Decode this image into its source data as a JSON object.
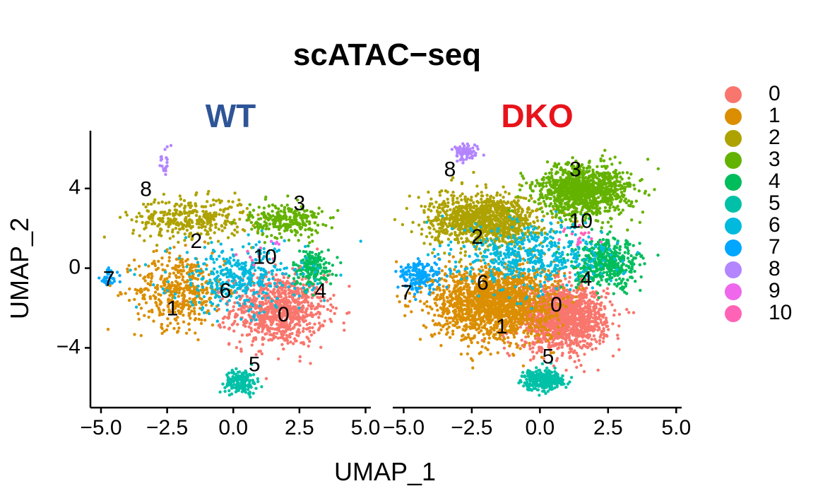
{
  "chart_data": {
    "type": "scatter",
    "title": "scATAC−seq",
    "xlabel": "UMAP_1",
    "ylabel": "UMAP_2",
    "xlim": [
      -5.4,
      5.2
    ],
    "ylim": [
      -7.0,
      6.9
    ],
    "xticks": [
      -5.0,
      -2.5,
      0.0,
      2.5,
      5.0
    ],
    "xtick_labels": [
      "−5.0",
      "−2.5",
      "0.0",
      "2.5",
      "5.0"
    ],
    "yticks": [
      -4,
      0,
      4
    ],
    "ytick_labels": [
      "−4",
      "0",
      "4"
    ],
    "legend_position": "right",
    "legend": [
      {
        "label": "0",
        "color": "#F8766D"
      },
      {
        "label": "1",
        "color": "#DB8E00"
      },
      {
        "label": "2",
        "color": "#AEA200"
      },
      {
        "label": "3",
        "color": "#64B200"
      },
      {
        "label": "4",
        "color": "#00BD5C"
      },
      {
        "label": "5",
        "color": "#00C1A7"
      },
      {
        "label": "6",
        "color": "#00BADE"
      },
      {
        "label": "7",
        "color": "#00A6FF"
      },
      {
        "label": "8",
        "color": "#B385FF"
      },
      {
        "label": "9",
        "color": "#EF67EB"
      },
      {
        "label": "10",
        "color": "#FF63B6"
      }
    ],
    "panels": [
      {
        "title": "WT",
        "title_color": "#2E5597",
        "cluster_labels": [
          {
            "label": "0",
            "x": 1.9,
            "y": -2.4
          },
          {
            "label": "1",
            "x": -2.3,
            "y": -2.1
          },
          {
            "label": "2",
            "x": -1.4,
            "y": 1.3
          },
          {
            "label": "3",
            "x": 2.5,
            "y": 3.2
          },
          {
            "label": "4",
            "x": 3.3,
            "y": -1.2
          },
          {
            "label": "5",
            "x": 0.8,
            "y": -4.9
          },
          {
            "label": "6",
            "x": -0.3,
            "y": -1.2
          },
          {
            "label": "7",
            "x": -4.7,
            "y": -0.6
          },
          {
            "label": "8",
            "x": -3.3,
            "y": 3.9
          },
          {
            "label": "10",
            "x": 1.2,
            "y": 0.5
          }
        ],
        "clusters": [
          {
            "cluster": "0",
            "cx": 1.7,
            "cy": -2.1,
            "sx": 1.05,
            "sy": 1.05,
            "n": 900
          },
          {
            "cluster": "1",
            "cx": -2.0,
            "cy": -1.1,
            "sx": 1.0,
            "sy": 1.1,
            "n": 450
          },
          {
            "cluster": "2",
            "cx": -1.6,
            "cy": 2.5,
            "sx": 1.3,
            "sy": 0.6,
            "n": 350
          },
          {
            "cluster": "3",
            "cx": 2.0,
            "cy": 2.4,
            "sx": 0.8,
            "sy": 0.5,
            "n": 260
          },
          {
            "cluster": "4",
            "cx": 3.0,
            "cy": 0.0,
            "sx": 0.45,
            "sy": 0.55,
            "n": 170
          },
          {
            "cluster": "5",
            "cx": 0.3,
            "cy": -5.7,
            "sx": 0.35,
            "sy": 0.35,
            "n": 170
          },
          {
            "cluster": "6",
            "cx": 0.2,
            "cy": -0.5,
            "sx": 1.5,
            "sy": 1.0,
            "n": 380
          },
          {
            "cluster": "7",
            "cx": -4.7,
            "cy": -0.5,
            "sx": 0.2,
            "sy": 0.3,
            "n": 40
          },
          {
            "cluster": "8",
            "cx": -2.6,
            "cy": 5.3,
            "sx": 0.15,
            "sy": 0.45,
            "n": 20
          },
          {
            "cluster": "9",
            "cx": 1.6,
            "cy": 1.3,
            "sx": 0.2,
            "sy": 0.2,
            "n": 4
          },
          {
            "cluster": "10",
            "cx": 1.0,
            "cy": 0.6,
            "sx": 0.5,
            "sy": 0.3,
            "n": 8
          }
        ]
      },
      {
        "title": "DKO",
        "title_color": "#E8131B",
        "cluster_labels": [
          {
            "label": "0",
            "x": 0.6,
            "y": -1.9
          },
          {
            "label": "1",
            "x": -1.4,
            "y": -3.0
          },
          {
            "label": "2",
            "x": -2.3,
            "y": 1.5
          },
          {
            "label": "3",
            "x": 1.3,
            "y": 4.9
          },
          {
            "label": "4",
            "x": 1.7,
            "y": -0.6
          },
          {
            "label": "5",
            "x": 0.3,
            "y": -4.5
          },
          {
            "label": "6",
            "x": -2.1,
            "y": -0.8
          },
          {
            "label": "7",
            "x": -4.9,
            "y": -1.3
          },
          {
            "label": "8",
            "x": -3.3,
            "y": 4.9
          },
          {
            "label": "10",
            "x": 1.5,
            "y": 2.3
          }
        ],
        "clusters": [
          {
            "cluster": "0",
            "cx": 0.8,
            "cy": -2.5,
            "sx": 0.95,
            "sy": 0.9,
            "n": 1500
          },
          {
            "cluster": "1",
            "cx": -1.7,
            "cy": -1.7,
            "sx": 1.3,
            "sy": 1.1,
            "n": 1700
          },
          {
            "cluster": "2",
            "cx": -2.0,
            "cy": 2.4,
            "sx": 1.2,
            "sy": 0.75,
            "n": 1100
          },
          {
            "cluster": "3",
            "cx": 1.6,
            "cy": 3.9,
            "sx": 1.0,
            "sy": 0.75,
            "n": 1100
          },
          {
            "cluster": "4",
            "cx": 2.5,
            "cy": 0.2,
            "sx": 0.7,
            "sy": 0.7,
            "n": 450
          },
          {
            "cluster": "5",
            "cx": 0.1,
            "cy": -5.6,
            "sx": 0.45,
            "sy": 0.3,
            "n": 300
          },
          {
            "cluster": "6",
            "cx": -0.3,
            "cy": 0.6,
            "sx": 1.6,
            "sy": 1.0,
            "n": 500
          },
          {
            "cluster": "7",
            "cx": -4.4,
            "cy": -0.4,
            "sx": 0.45,
            "sy": 0.45,
            "n": 180
          },
          {
            "cluster": "8",
            "cx": -2.7,
            "cy": 5.8,
            "sx": 0.25,
            "sy": 0.22,
            "n": 90
          },
          {
            "cluster": "9",
            "cx": 1.4,
            "cy": 1.3,
            "sx": 0.15,
            "sy": 0.15,
            "n": 5
          },
          {
            "cluster": "10",
            "cx": 1.4,
            "cy": 1.8,
            "sx": 0.4,
            "sy": 0.3,
            "n": 15
          }
        ]
      }
    ]
  }
}
